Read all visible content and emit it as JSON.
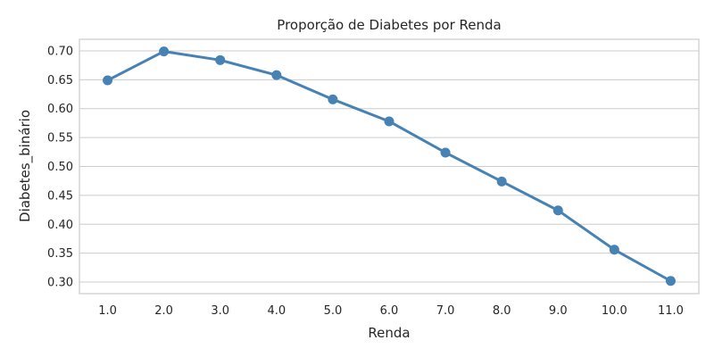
{
  "chart_data": {
    "type": "line",
    "title": "Proporção de Diabetes por Renda",
    "xlabel": "Renda",
    "ylabel": "Diabetes_binário",
    "categories": [
      "1.0",
      "2.0",
      "3.0",
      "4.0",
      "5.0",
      "6.0",
      "7.0",
      "8.0",
      "9.0",
      "10.0",
      "11.0"
    ],
    "series": [
      {
        "values": [
          0.649,
          0.699,
          0.684,
          0.658,
          0.616,
          0.578,
          0.524,
          0.474,
          0.424,
          0.356,
          0.302
        ]
      }
    ],
    "ylim": [
      0.28,
      0.72
    ],
    "yticks": [
      0.3,
      0.35,
      0.4,
      0.45,
      0.5,
      0.55,
      0.6,
      0.65,
      0.7
    ],
    "ytick_labels": [
      "0.30",
      "0.35",
      "0.40",
      "0.45",
      "0.50",
      "0.55",
      "0.60",
      "0.65",
      "0.70"
    ],
    "grid": true,
    "colors": {
      "series": "#4682b4",
      "grid": "#cccccc",
      "frame": "#cccccc",
      "text": "#262626"
    }
  }
}
